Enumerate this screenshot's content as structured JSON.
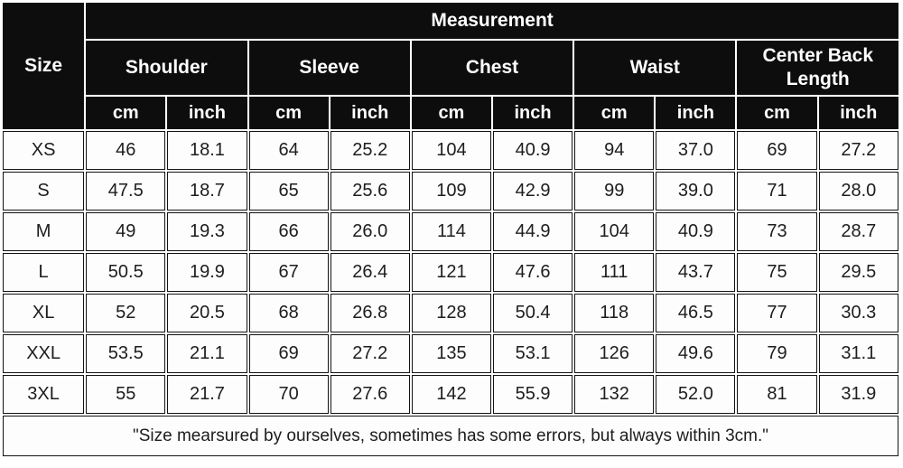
{
  "table": {
    "corner_label": "Size",
    "top_header": "Measurement",
    "groups": [
      {
        "label": "Shoulder"
      },
      {
        "label": "Sleeve"
      },
      {
        "label": "Chest"
      },
      {
        "label": "Waist"
      },
      {
        "label": "Center Back Length"
      }
    ],
    "unit_headers": [
      "cm",
      "inch",
      "cm",
      "inch",
      "cm",
      "inch",
      "cm",
      "inch",
      "cm",
      "inch"
    ],
    "rows": [
      {
        "size": "XS",
        "values": [
          "46",
          "18.1",
          "64",
          "25.2",
          "104",
          "40.9",
          "94",
          "37.0",
          "69",
          "27.2"
        ]
      },
      {
        "size": "S",
        "values": [
          "47.5",
          "18.7",
          "65",
          "25.6",
          "109",
          "42.9",
          "99",
          "39.0",
          "71",
          "28.0"
        ]
      },
      {
        "size": "M",
        "values": [
          "49",
          "19.3",
          "66",
          "26.0",
          "114",
          "44.9",
          "104",
          "40.9",
          "73",
          "28.7"
        ]
      },
      {
        "size": "L",
        "values": [
          "50.5",
          "19.9",
          "67",
          "26.4",
          "121",
          "47.6",
          "111",
          "43.7",
          "75",
          "29.5"
        ]
      },
      {
        "size": "XL",
        "values": [
          "52",
          "20.5",
          "68",
          "26.8",
          "128",
          "50.4",
          "118",
          "46.5",
          "77",
          "30.3"
        ]
      },
      {
        "size": "XXL",
        "values": [
          "53.5",
          "21.1",
          "69",
          "27.2",
          "135",
          "53.1",
          "126",
          "49.6",
          "79",
          "31.1"
        ]
      },
      {
        "size": "3XL",
        "values": [
          "55",
          "21.7",
          "70",
          "27.6",
          "142",
          "55.9",
          "132",
          "52.0",
          "81",
          "31.9"
        ]
      }
    ],
    "footnote": "\"Size mearsured by ourselves, sometimes has some errors, but always within 3cm.\""
  },
  "colors": {
    "header_bg": "#0d0d0d",
    "header_text": "#ffffff",
    "cell_bg": "#fdfdfd",
    "cell_text": "#1d1d1d",
    "border": "#131313"
  },
  "chart_data": {
    "type": "table",
    "title": "Measurement",
    "row_header": "Size",
    "column_groups": [
      "Shoulder",
      "Sleeve",
      "Chest",
      "Waist",
      "Center Back Length"
    ],
    "units_per_group": [
      "cm",
      "inch"
    ],
    "categories": [
      "XS",
      "S",
      "M",
      "L",
      "XL",
      "XXL",
      "3XL"
    ],
    "series": [
      {
        "name": "Shoulder cm",
        "values": [
          46,
          47.5,
          49,
          50.5,
          52,
          53.5,
          55
        ]
      },
      {
        "name": "Shoulder inch",
        "values": [
          18.1,
          18.7,
          19.3,
          19.9,
          20.5,
          21.1,
          21.7
        ]
      },
      {
        "name": "Sleeve cm",
        "values": [
          64,
          65,
          66,
          67,
          68,
          69,
          70
        ]
      },
      {
        "name": "Sleeve inch",
        "values": [
          25.2,
          25.6,
          26.0,
          26.4,
          26.8,
          27.2,
          27.6
        ]
      },
      {
        "name": "Chest cm",
        "values": [
          104,
          109,
          114,
          121,
          128,
          135,
          142
        ]
      },
      {
        "name": "Chest inch",
        "values": [
          40.9,
          42.9,
          44.9,
          47.6,
          50.4,
          53.1,
          55.9
        ]
      },
      {
        "name": "Waist cm",
        "values": [
          94,
          99,
          104,
          111,
          118,
          126,
          132
        ]
      },
      {
        "name": "Waist inch",
        "values": [
          37.0,
          39.0,
          40.9,
          43.7,
          46.5,
          49.6,
          52.0
        ]
      },
      {
        "name": "Center Back Length cm",
        "values": [
          69,
          71,
          73,
          75,
          77,
          79,
          81
        ]
      },
      {
        "name": "Center Back Length inch",
        "values": [
          27.2,
          28.0,
          28.7,
          29.5,
          30.3,
          31.1,
          31.9
        ]
      }
    ],
    "annotation": "\"Size mearsured by ourselves, sometimes has some errors, but always within 3cm.\""
  }
}
